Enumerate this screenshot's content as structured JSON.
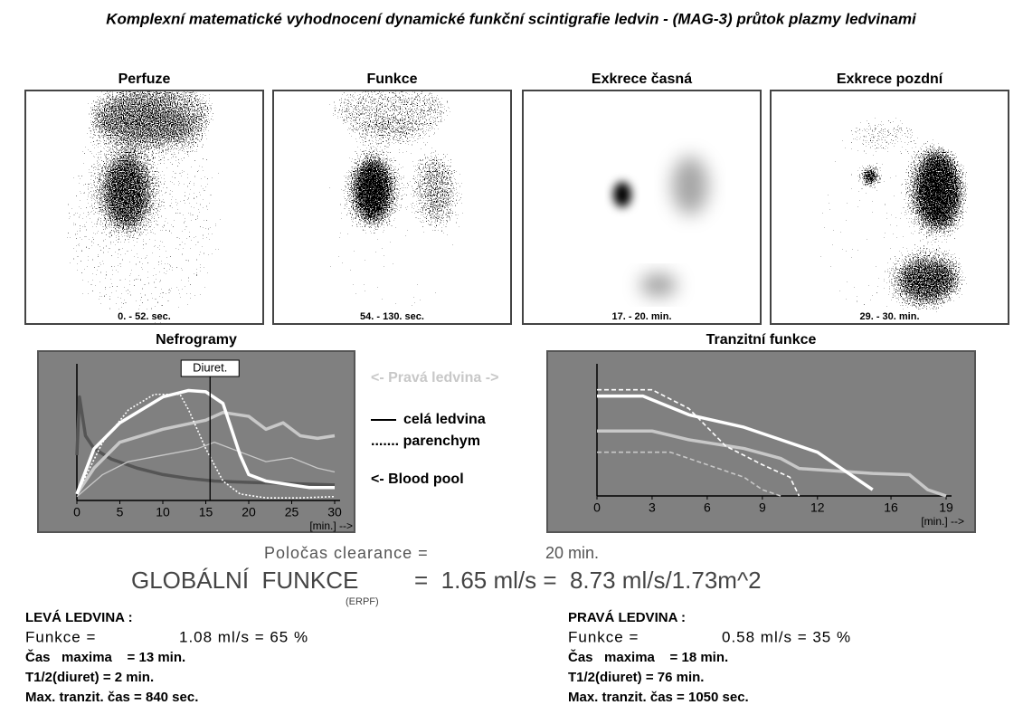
{
  "title": "Komplexní matematické vyhodnocení dynamické funkční scintigrafie ledvin - (MAG-3) průtok plazmy ledvinami",
  "images": [
    {
      "title": "Perfuze",
      "caption": "0. - 52. sec."
    },
    {
      "title": "Funkce",
      "caption": "54. - 130. sec."
    },
    {
      "title": "Exkrece časná",
      "caption": "17. - 20. min."
    },
    {
      "title": "Exkrece pozdní",
      "caption": "29. - 30. min."
    }
  ],
  "nefrogramy": {
    "type": "line",
    "title": "Nefrogramy",
    "x_label": "[min.] -->",
    "xlim": [
      0,
      30
    ],
    "ylim": [
      0,
      100
    ],
    "xticks": [
      0,
      5,
      10,
      15,
      20,
      25,
      30
    ],
    "annotation": {
      "label": "Diuret.",
      "x": 15.5
    },
    "series": [
      {
        "color": "#555555",
        "style": "thick",
        "x": [
          0,
          0.3,
          1,
          2,
          4,
          7,
          10,
          13,
          16,
          20,
          25,
          30
        ],
        "values": [
          35,
          80,
          50,
          40,
          32,
          25,
          20,
          17,
          15,
          14,
          13,
          12
        ]
      },
      {
        "color": "#c8c8c8",
        "style": "thin",
        "x": [
          0,
          3,
          6,
          10,
          14,
          16,
          18,
          22,
          25,
          28,
          30
        ],
        "values": [
          3,
          20,
          30,
          35,
          40,
          45,
          40,
          30,
          33,
          25,
          22
        ]
      },
      {
        "color": "#c8c8c8",
        "style": "thick",
        "x": [
          0,
          2,
          5,
          10,
          15,
          17,
          20,
          22,
          24,
          26,
          28,
          30
        ],
        "values": [
          5,
          25,
          45,
          55,
          62,
          68,
          65,
          55,
          60,
          50,
          48,
          50
        ]
      },
      {
        "color": "#ffffff",
        "style": "dotted",
        "x": [
          0,
          3,
          6,
          9,
          12,
          13,
          15,
          17,
          19,
          22,
          26,
          30
        ],
        "values": [
          5,
          45,
          70,
          82,
          82,
          70,
          40,
          15,
          5,
          2,
          2,
          3
        ]
      },
      {
        "color": "#ffffff",
        "style": "thick",
        "x": [
          0,
          2,
          5,
          10,
          13,
          15,
          17,
          19,
          20,
          22,
          25,
          27,
          30
        ],
        "values": [
          5,
          40,
          60,
          80,
          85,
          84,
          75,
          35,
          20,
          15,
          12,
          10,
          10
        ]
      }
    ]
  },
  "legend": {
    "side": "<- Pravá ledvina ->",
    "whole": "celá ledvina",
    "parenchym": "....... parenchym",
    "blood": "<- Blood pool"
  },
  "tranzitni": {
    "type": "line",
    "title": "Tranzitní funkce",
    "x_label": "[min.] -->",
    "xlim": [
      0,
      19
    ],
    "ylim": [
      0,
      100
    ],
    "xticks": [
      0,
      3,
      6,
      9,
      12,
      16,
      19
    ],
    "series": [
      {
        "color": "#c8c8c8",
        "style": "dashed",
        "x": [
          0,
          4,
          6,
          8,
          9,
          10
        ],
        "values": [
          35,
          35,
          25,
          15,
          5,
          0
        ]
      },
      {
        "color": "#c8c8c8",
        "style": "thick",
        "x": [
          0,
          3,
          5,
          8,
          10,
          11,
          13,
          15,
          17,
          18,
          19
        ],
        "values": [
          52,
          52,
          45,
          38,
          30,
          22,
          20,
          18,
          17,
          5,
          0
        ]
      },
      {
        "color": "#ffffff",
        "style": "dashed",
        "x": [
          0,
          3,
          5,
          7,
          9,
          10.5,
          11
        ],
        "values": [
          85,
          85,
          70,
          40,
          25,
          15,
          0
        ]
      },
      {
        "color": "#ffffff",
        "style": "thick",
        "x": [
          0,
          2.5,
          5,
          8,
          10,
          12,
          15
        ],
        "values": [
          80,
          80,
          65,
          55,
          45,
          35,
          5
        ]
      }
    ]
  },
  "clearance": {
    "label": "Poločas clearance =",
    "value": "20 min."
  },
  "global": {
    "label": "GLOBÁLNÍ  FUNKCE",
    "note": "(ERPF)",
    "value": "=  1.65 ml/s =  8.73 ml/s/1.73m^2"
  },
  "left": {
    "heading": "LEVÁ LEDVINA :",
    "funkce_label": "Funkce =",
    "funkce_value": "1.08 ml/s = 65 %",
    "cas": "Čas   maxima    = 13 min.",
    "t12": "T1/2(diuret) = 2 min.",
    "tranzit": "Max. tranzit. čas = 840 sec."
  },
  "right": {
    "heading": "PRAVÁ LEDVINA :",
    "funkce_label": "Funkce =",
    "funkce_value": "0.58 ml/s = 35 %",
    "cas": "Čas   maxima    = 18 min.",
    "t12": "T1/2(diuret) = 76 min.",
    "tranzit": "Max. tranzit. čas = 1050 sec."
  }
}
